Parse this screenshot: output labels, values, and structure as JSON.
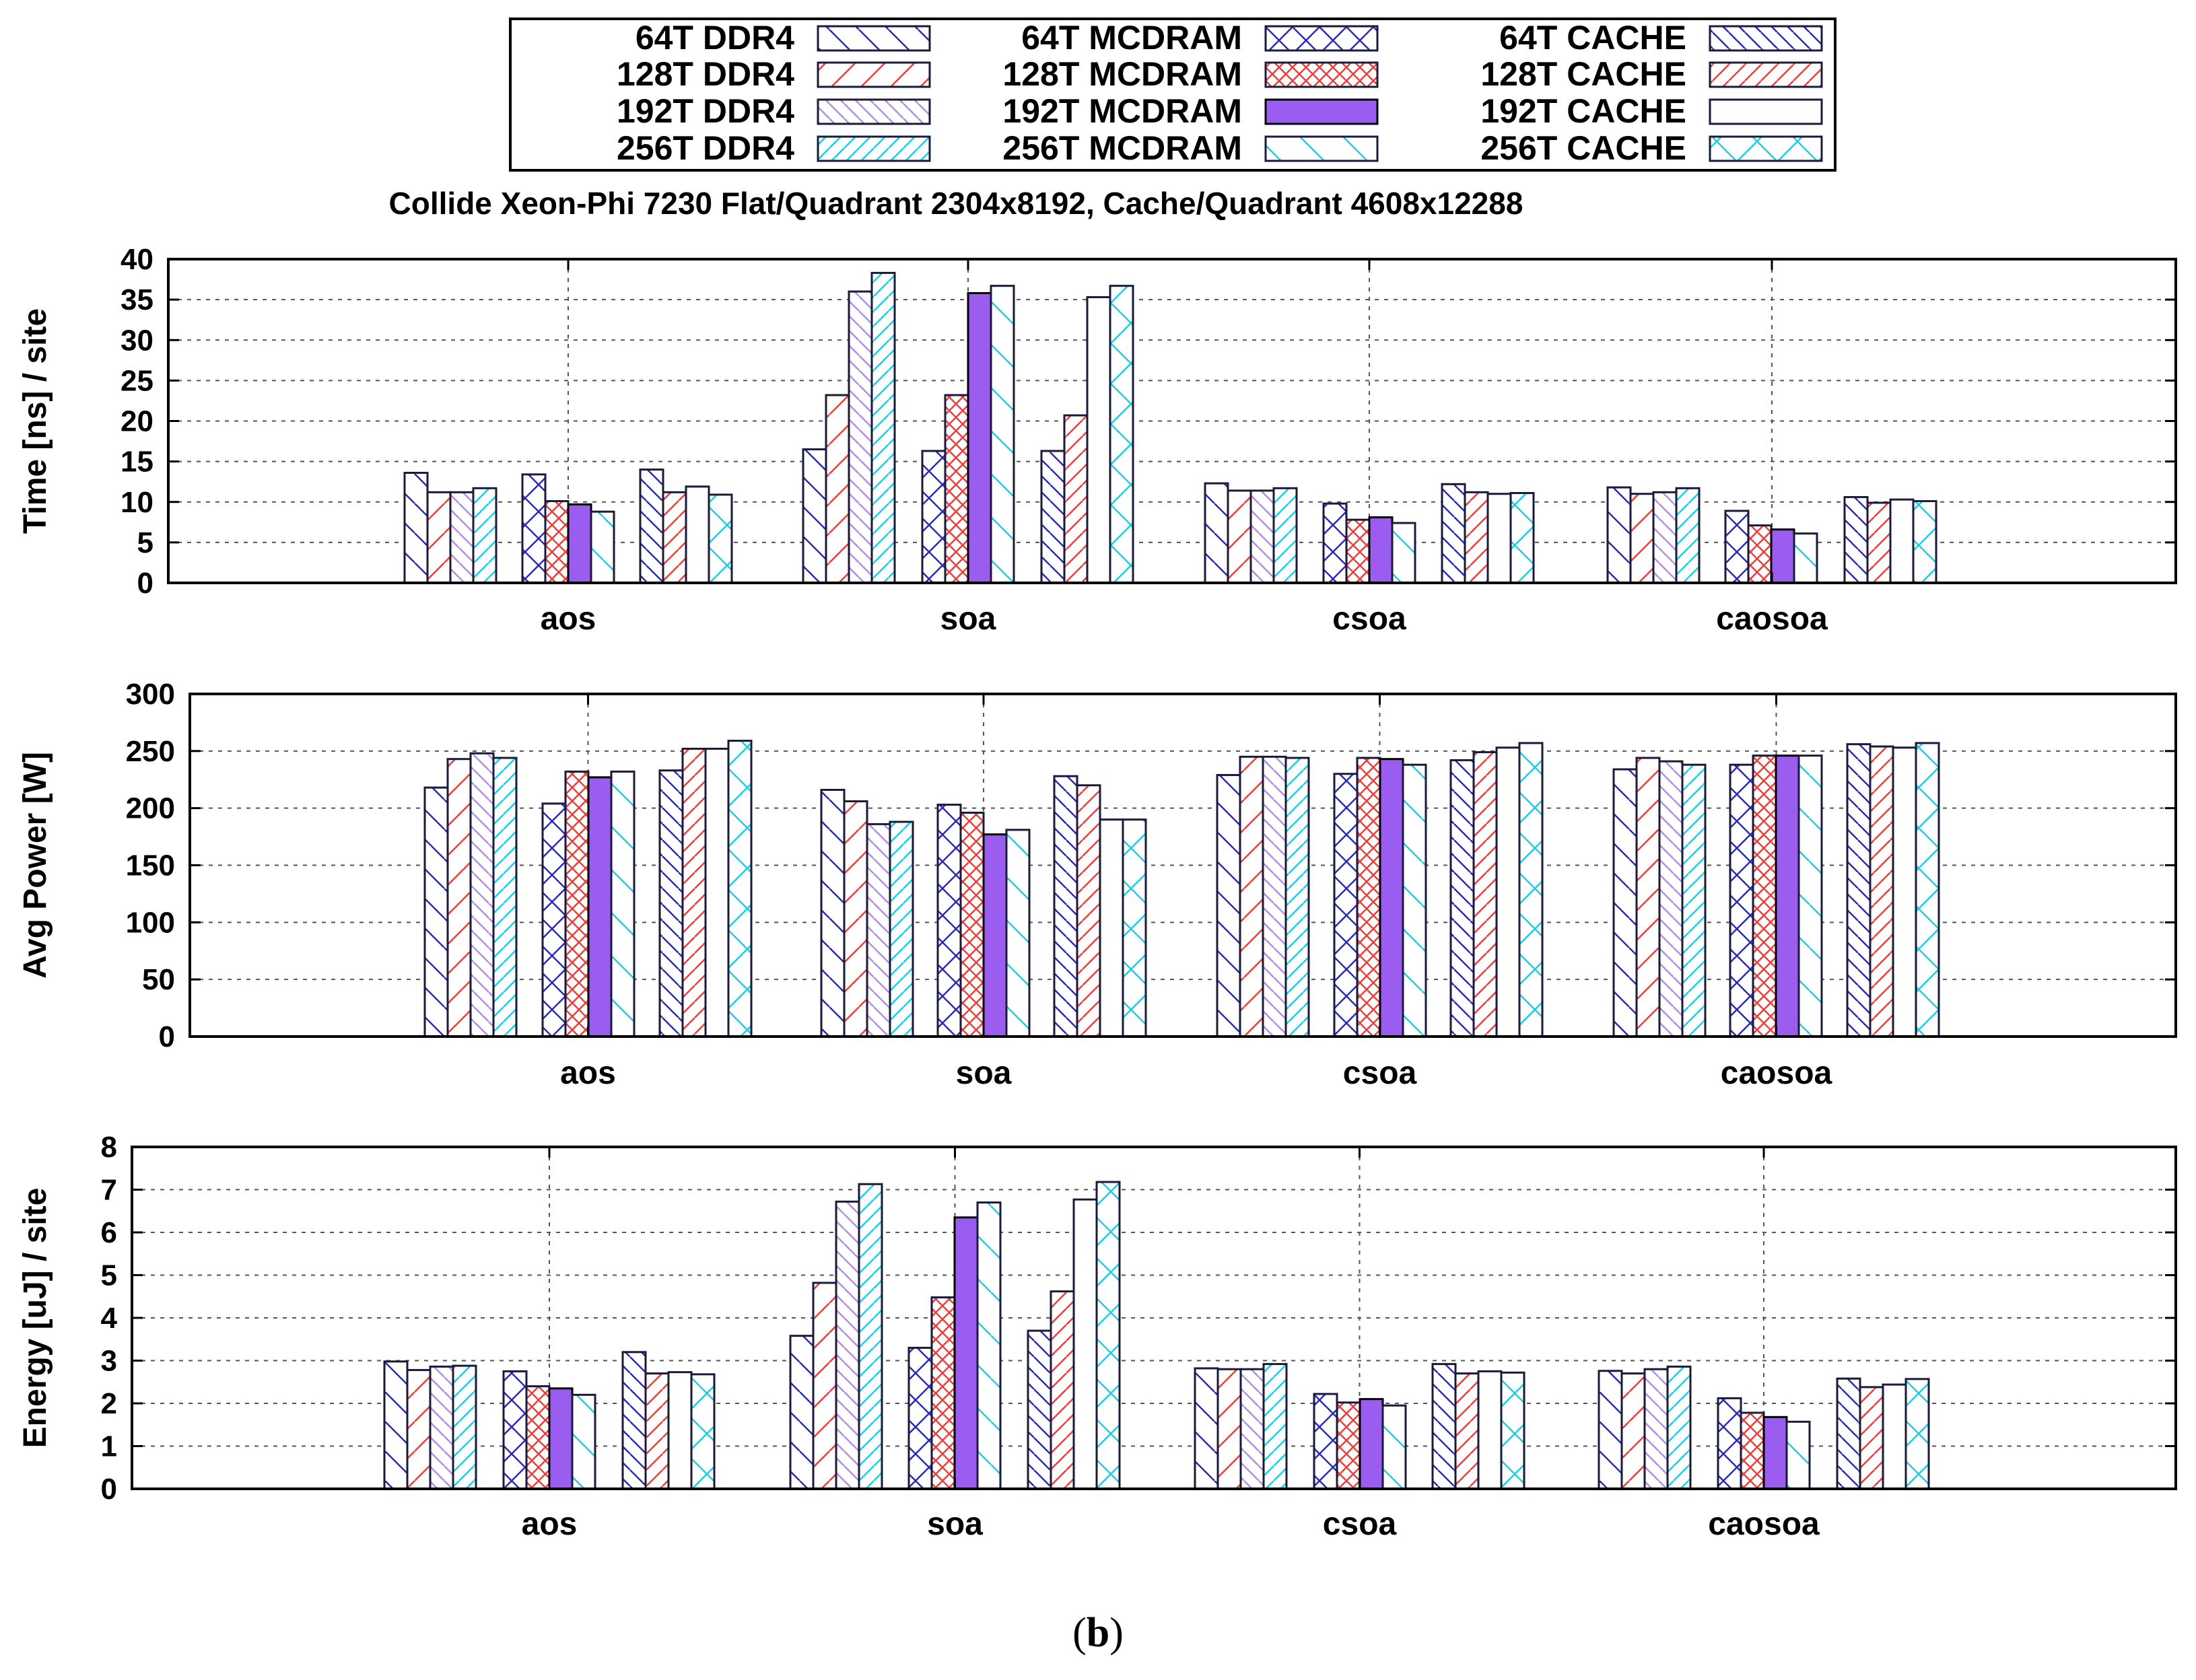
{
  "figure": {
    "title": "Collide Xeon-Phi 7230 Flat/Quadrant 2304x8192, Cache/Quadrant 4608x12288",
    "caption_letter": "b"
  },
  "legend": [
    {
      "threads": "64T",
      "mode": "DDR4",
      "color": "#2a2ab8",
      "pattern": "back",
      "filled": false
    },
    {
      "threads": "128T",
      "mode": "DDR4",
      "color": "#e8403c",
      "pattern": "fwd",
      "filled": false
    },
    {
      "threads": "192T",
      "mode": "DDR4",
      "color": "#b68be8",
      "pattern": "back-dense",
      "filled": false
    },
    {
      "threads": "256T",
      "mode": "DDR4",
      "color": "#1ccfe0",
      "pattern": "fwd-dense",
      "filled": false
    },
    {
      "threads": "64T",
      "mode": "MCDRAM",
      "color": "#2a2ab8",
      "pattern": "cross",
      "filled": false
    },
    {
      "threads": "128T",
      "mode": "MCDRAM",
      "color": "#e8403c",
      "pattern": "cross-dense",
      "filled": false
    },
    {
      "threads": "192T",
      "mode": "MCDRAM",
      "color": "#9b5cf0",
      "pattern": "solid",
      "filled": true
    },
    {
      "threads": "256T",
      "mode": "MCDRAM",
      "color": "#1ccfe0",
      "pattern": "back-wide",
      "filled": false
    },
    {
      "threads": "64T",
      "mode": "CACHE",
      "color": "#2a2ab8",
      "pattern": "back-steep",
      "filled": false
    },
    {
      "threads": "128T",
      "mode": "CACHE",
      "color": "#e8403c",
      "pattern": "fwd-steep",
      "filled": false
    },
    {
      "threads": "192T",
      "mode": "CACHE",
      "color": "#000000",
      "pattern": "none",
      "filled": false
    },
    {
      "threads": "256T",
      "mode": "CACHE",
      "color": "#1ccfe0",
      "pattern": "cross-wide",
      "filled": false
    }
  ],
  "chart_data": [
    {
      "type": "bar",
      "ylabel": "Time [ns] / site",
      "xlabel": "",
      "ylim": [
        0,
        40
      ],
      "yticks": [
        0,
        5,
        10,
        15,
        20,
        25,
        30,
        35,
        40
      ],
      "grid": true,
      "categories": [
        "aos",
        "soa",
        "csoa",
        "caosoa"
      ],
      "series": [
        {
          "name": "64T DDR4",
          "values": [
            13.6,
            16.5,
            12.3,
            11.8
          ]
        },
        {
          "name": "128T DDR4",
          "values": [
            11.2,
            23.2,
            11.4,
            11.0
          ]
        },
        {
          "name": "192T DDR4",
          "values": [
            11.2,
            36.0,
            11.4,
            11.2
          ]
        },
        {
          "name": "256T DDR4",
          "values": [
            11.7,
            38.3,
            11.7,
            11.7
          ]
        },
        {
          "name": "64T MCDRAM",
          "values": [
            13.4,
            16.3,
            9.8,
            8.9
          ]
        },
        {
          "name": "128T MCDRAM",
          "values": [
            10.1,
            23.2,
            7.8,
            7.1
          ]
        },
        {
          "name": "192T MCDRAM",
          "values": [
            9.7,
            35.8,
            8.1,
            6.6
          ]
        },
        {
          "name": "256T MCDRAM",
          "values": [
            8.8,
            36.7,
            7.4,
            6.1
          ]
        },
        {
          "name": "64T CACHE",
          "values": [
            14.0,
            16.3,
            12.2,
            10.6
          ]
        },
        {
          "name": "128T CACHE",
          "values": [
            11.2,
            20.7,
            11.2,
            9.9
          ]
        },
        {
          "name": "192T CACHE",
          "values": [
            11.9,
            35.3,
            11.0,
            10.3
          ]
        },
        {
          "name": "256T CACHE",
          "values": [
            10.9,
            36.7,
            11.1,
            10.1
          ]
        }
      ]
    },
    {
      "type": "bar",
      "ylabel": "Avg Power [W]",
      "xlabel": "",
      "ylim": [
        0,
        300
      ],
      "yticks": [
        0,
        50,
        100,
        150,
        200,
        250,
        300
      ],
      "grid": true,
      "categories": [
        "aos",
        "soa",
        "csoa",
        "caosoa"
      ],
      "series": [
        {
          "name": "64T DDR4",
          "values": [
            218,
            216,
            229,
            234
          ]
        },
        {
          "name": "128T DDR4",
          "values": [
            243,
            206,
            245,
            244
          ]
        },
        {
          "name": "192T DDR4",
          "values": [
            248,
            186,
            245,
            241
          ]
        },
        {
          "name": "256T DDR4",
          "values": [
            244,
            188,
            244,
            238
          ]
        },
        {
          "name": "64T MCDRAM",
          "values": [
            204,
            203,
            230,
            238
          ]
        },
        {
          "name": "128T MCDRAM",
          "values": [
            232,
            196,
            244,
            246
          ]
        },
        {
          "name": "192T MCDRAM",
          "values": [
            227,
            177,
            243,
            246
          ]
        },
        {
          "name": "256T MCDRAM",
          "values": [
            232,
            181,
            238,
            246
          ]
        },
        {
          "name": "64T CACHE",
          "values": [
            233,
            228,
            242,
            256
          ]
        },
        {
          "name": "128T CACHE",
          "values": [
            252,
            220,
            249,
            254
          ]
        },
        {
          "name": "192T CACHE",
          "values": [
            252,
            190,
            253,
            253
          ]
        },
        {
          "name": "256T CACHE",
          "values": [
            259,
            190,
            257,
            257
          ]
        }
      ]
    },
    {
      "type": "bar",
      "ylabel": "Energy [uJ] / site",
      "xlabel": "",
      "ylim": [
        0,
        8
      ],
      "yticks": [
        0,
        1,
        2,
        3,
        4,
        5,
        6,
        7,
        8
      ],
      "grid": true,
      "categories": [
        "aos",
        "soa",
        "csoa",
        "caosoa"
      ],
      "series": [
        {
          "name": "64T DDR4",
          "values": [
            2.98,
            3.58,
            2.82,
            2.76
          ]
        },
        {
          "name": "128T DDR4",
          "values": [
            2.78,
            4.82,
            2.8,
            2.7
          ]
        },
        {
          "name": "192T DDR4",
          "values": [
            2.86,
            6.72,
            2.8,
            2.8
          ]
        },
        {
          "name": "256T DDR4",
          "values": [
            2.88,
            7.13,
            2.92,
            2.86
          ]
        },
        {
          "name": "64T MCDRAM",
          "values": [
            2.75,
            3.3,
            2.22,
            2.12
          ]
        },
        {
          "name": "128T MCDRAM",
          "values": [
            2.4,
            4.48,
            2.02,
            1.78
          ]
        },
        {
          "name": "192T MCDRAM",
          "values": [
            2.35,
            6.35,
            2.1,
            1.68
          ]
        },
        {
          "name": "256T MCDRAM",
          "values": [
            2.2,
            6.7,
            1.95,
            1.57
          ]
        },
        {
          "name": "64T CACHE",
          "values": [
            3.2,
            3.7,
            2.92,
            2.58
          ]
        },
        {
          "name": "128T CACHE",
          "values": [
            2.7,
            4.62,
            2.7,
            2.38
          ]
        },
        {
          "name": "192T CACHE",
          "values": [
            2.73,
            6.77,
            2.75,
            2.44
          ]
        },
        {
          "name": "256T CACHE",
          "values": [
            2.68,
            7.18,
            2.72,
            2.57
          ]
        }
      ]
    }
  ]
}
